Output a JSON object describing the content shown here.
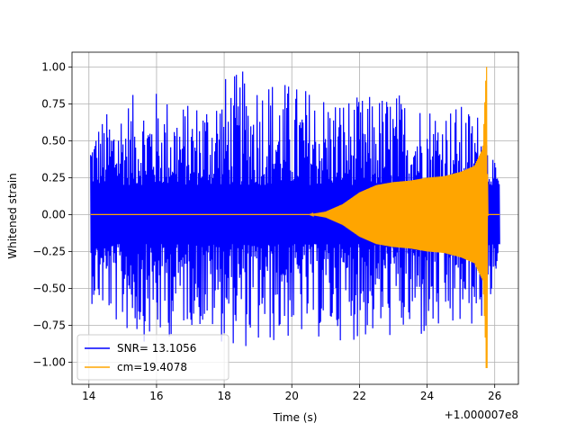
{
  "chart_data": {
    "type": "line",
    "title": "",
    "xlabel": "Time (s)",
    "ylabel": "Whitened strain",
    "x_offset_label": "+1.000007e8",
    "xlim": [
      13.5,
      26.7
    ],
    "ylim": [
      -1.15,
      1.1
    ],
    "x_ticks": [
      14,
      16,
      18,
      20,
      22,
      24,
      26
    ],
    "y_ticks": [
      -1.0,
      -0.75,
      -0.5,
      -0.25,
      0.0,
      0.25,
      0.5,
      0.75,
      1.0
    ],
    "x_tick_labels": [
      "14",
      "16",
      "18",
      "20",
      "22",
      "24",
      "26"
    ],
    "y_tick_labels": [
      "−1.00",
      "−0.75",
      "−0.50",
      "−0.25",
      "0.00",
      "0.25",
      "0.50",
      "0.75",
      "1.00"
    ],
    "grid": true,
    "legend_position": "lower-left",
    "series": [
      {
        "name": "SNR= 13.1056",
        "color": "#0000ff",
        "description": "whitened strain noise",
        "x_start": 14.05,
        "x_end": 26.15,
        "upper_envelope": [
          [
            14.05,
            0.6
          ],
          [
            15,
            0.8
          ],
          [
            16,
            0.85
          ],
          [
            17,
            0.75
          ],
          [
            18,
            0.95
          ],
          [
            19,
            1.0
          ],
          [
            20,
            0.9
          ],
          [
            21,
            0.85
          ],
          [
            22,
            0.8
          ],
          [
            23,
            0.85
          ],
          [
            24,
            0.78
          ],
          [
            25,
            0.75
          ],
          [
            25.7,
            0.7
          ],
          [
            25.9,
            0.45
          ],
          [
            26.15,
            0.2
          ]
        ],
        "lower_envelope": [
          [
            14.05,
            -0.6
          ],
          [
            15,
            -0.8
          ],
          [
            16,
            -0.9
          ],
          [
            17,
            -0.75
          ],
          [
            18,
            -0.88
          ],
          [
            19,
            -0.93
          ],
          [
            20,
            -0.85
          ],
          [
            21,
            -0.85
          ],
          [
            22,
            -0.86
          ],
          [
            23,
            -0.85
          ],
          [
            24,
            -0.88
          ],
          [
            25,
            -0.8
          ],
          [
            25.7,
            -0.75
          ],
          [
            25.9,
            -0.6
          ],
          [
            26.15,
            -0.2
          ]
        ]
      },
      {
        "name": "cm=19.4078",
        "color": "#ffa500",
        "description": "chirp template",
        "envelope": [
          [
            14.05,
            0.0
          ],
          [
            20.5,
            0.0
          ],
          [
            21.0,
            0.02
          ],
          [
            21.5,
            0.07
          ],
          [
            22.0,
            0.15
          ],
          [
            22.5,
            0.2
          ],
          [
            23.0,
            0.22
          ],
          [
            23.5,
            0.23
          ],
          [
            24.0,
            0.25
          ],
          [
            24.5,
            0.26
          ],
          [
            25.0,
            0.29
          ],
          [
            25.4,
            0.33
          ],
          [
            25.65,
            0.45
          ],
          [
            25.75,
            1.0
          ],
          [
            25.8,
            0.0
          ],
          [
            26.15,
            0.0
          ]
        ],
        "peak_min": -1.04,
        "peak_max": 1.0
      }
    ]
  }
}
